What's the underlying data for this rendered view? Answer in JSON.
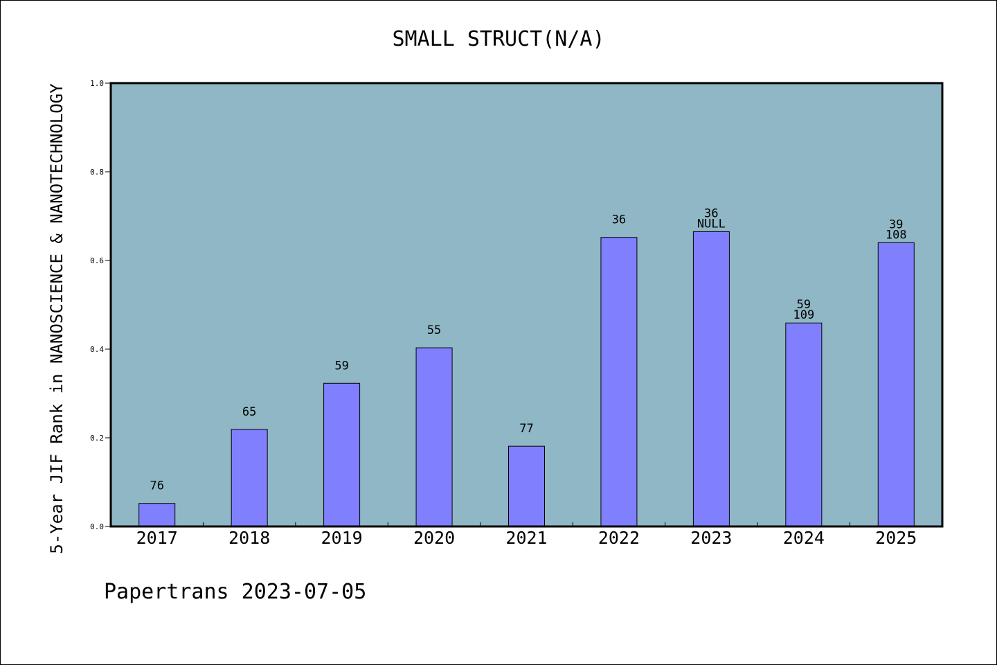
{
  "chart_data": {
    "type": "bar",
    "title": "SMALL STRUCT(N/A)",
    "ylabel": "5-Year JIF Rank in NANOSCIENCE & NANOTECHNOLOGY",
    "xlabel": "",
    "categories": [
      "2017",
      "2018",
      "2019",
      "2020",
      "2021",
      "2022",
      "2023",
      "2024",
      "2025"
    ],
    "values": [
      0.052,
      0.219,
      0.323,
      0.403,
      0.181,
      0.652,
      0.665,
      0.459,
      0.64
    ],
    "data_labels": [
      [
        "76"
      ],
      [
        "65"
      ],
      [
        "59"
      ],
      [
        "55"
      ],
      [
        "77"
      ],
      [
        "36"
      ],
      [
        "36",
        "NULL"
      ],
      [
        "59",
        "109"
      ],
      [
        "39",
        "108"
      ]
    ],
    "ylim": [
      0,
      1.0
    ],
    "yticks": [
      "0.0",
      "0.2",
      "0.4",
      "0.6",
      "0.8",
      "1.0"
    ],
    "grid": false,
    "legend": "none",
    "colors": {
      "plot_background": "#8fb7c5",
      "bar_fill": "#8080ff",
      "bar_stroke": "#000000"
    }
  },
  "footer": "Papertrans 2023-07-05"
}
